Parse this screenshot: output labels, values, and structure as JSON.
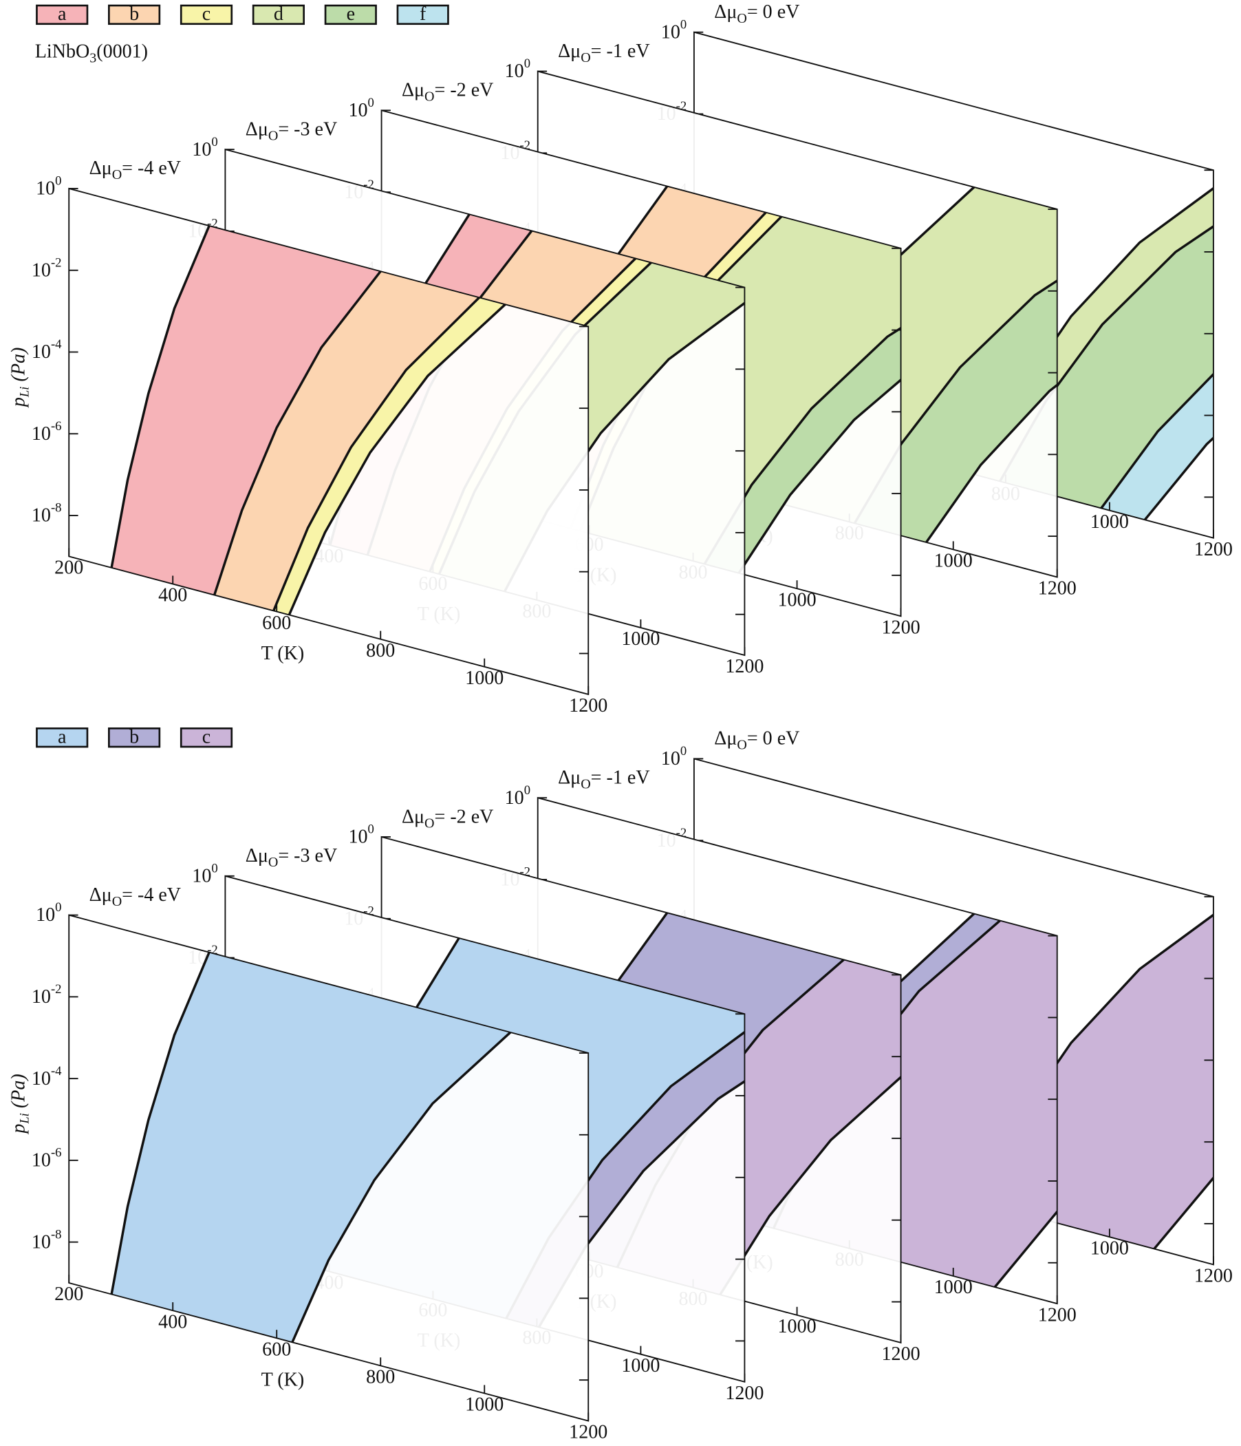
{
  "chart_data": [
    {
      "type": "phase-diagram-3d",
      "title": {
        "main": "LiNbO",
        "sub": "3",
        "rest": "(0001)"
      },
      "legend": [
        {
          "name": "a",
          "color": "#f6b3b8"
        },
        {
          "name": "b",
          "color": "#fcd5b1"
        },
        {
          "name": "c",
          "color": "#f8f4a8"
        },
        {
          "name": "d",
          "color": "#d9e8b0"
        },
        {
          "name": "e",
          "color": "#bcdca9"
        },
        {
          "name": "f",
          "color": "#bde3ee"
        }
      ],
      "xlabel": "T (K)",
      "ylabel": {
        "main": "p",
        "sub": "Li",
        "rest": " (Pa)"
      },
      "xlim": [
        200,
        1200
      ],
      "xticks": [
        200,
        400,
        600,
        800,
        1000,
        1200
      ],
      "ylim": [
        1e-09,
        1
      ],
      "log_y": true,
      "yticks": [
        {
          "value": 1,
          "base": "10",
          "exp": "0"
        },
        {
          "value": 0.01,
          "base": "10",
          "exp": "-2"
        },
        {
          "value": 0.0001,
          "base": "10",
          "exp": "-4"
        },
        {
          "value": 1e-06,
          "base": "10",
          "exp": "-6"
        },
        {
          "value": 1e-08,
          "base": "10",
          "exp": "-8"
        }
      ],
      "p_levels": [
        1e-09,
        1.778e-07,
        3.162e-05,
        0.005623,
        1
      ],
      "planes": [
        {
          "label": {
            "main": "Δμ",
            "sub": "O",
            "rest": "= -4 eV"
          },
          "regions": [
            "a",
            "b",
            "c"
          ],
          "boundaries": [
            {
              "T": [
                282,
                313,
                353,
                403,
                470
              ]
            },
            {
              "T": [
                480,
                533,
                600,
                686,
                800
              ]
            },
            {
              "T": [
                594,
                660,
                743,
                849,
                990
              ]
            },
            {
              "T": [
                624,
                693,
                780,
                891,
                1040
              ]
            }
          ]
        },
        {
          "label": {
            "main": "Δμ",
            "sub": "O",
            "rest": "= -3 eV"
          },
          "regions": [
            "a",
            "b",
            "c",
            "d"
          ],
          "boundaries": [
            {
              "T": [
                402,
                447,
                503,
                574,
                670
              ]
            },
            {
              "T": [
                474,
                527,
                593,
                677,
                790
              ]
            },
            {
              "T": [
                594,
                660,
                743,
                849,
                990
              ]
            },
            {
              "T": [
                612,
                680,
                765,
                874,
                1020
              ]
            },
            {
              "T": [
                738,
                820,
                923,
                1054,
                1230
              ]
            }
          ]
        },
        {
          "label": {
            "main": "Δμ",
            "sub": "O",
            "rest": "= -2 eV"
          },
          "regions": [
            "b",
            "c",
            "d",
            "e"
          ],
          "boundaries": [
            {
              "T": [
                450,
                500,
                563,
                643,
                750
              ]
            },
            {
              "T": [
                564,
                627,
                705,
                806,
                940
              ]
            },
            {
              "T": [
                582,
                647,
                728,
                831,
                970
              ]
            },
            {
              "T": [
                822,
                913,
                1028,
                1174,
                1370
              ]
            },
            {
              "T": [
                888,
                987,
                1110,
                1268,
                1480
              ]
            }
          ]
        },
        {
          "label": {
            "main": "Δμ",
            "sub": "O",
            "rest": "= -1 eV"
          },
          "regions": [
            "d",
            "e"
          ],
          "boundaries": [
            {
              "T": [
                624,
                693,
                780,
                891,
                1040
              ]
            },
            {
              "T": [
                810,
                900,
                1013,
                1157,
                1350
              ]
            },
            {
              "T": [
                948,
                1053,
                1185,
                1354,
                1580
              ]
            }
          ]
        },
        {
          "label": {
            "main": "Δμ",
            "sub": "O",
            "rest": "= 0 eV"
          },
          "regions": [
            "d",
            "e",
            "f"
          ],
          "boundaries": [
            {
              "T": [
                741,
                823,
                926,
                1058,
                1235
              ]
            },
            {
              "T": [
                789,
                877,
                986,
                1127,
                1315
              ]
            },
            {
              "T": [
                984,
                1093,
                1230,
                1406,
                1640
              ]
            },
            {
              "T": [
                1068,
                1187,
                1335,
                1526,
                1780
              ]
            }
          ]
        }
      ]
    },
    {
      "type": "phase-diagram-3d",
      "legend": [
        {
          "name": "a",
          "color": "#b5d5f0"
        },
        {
          "name": "b",
          "color": "#b1aed6"
        },
        {
          "name": "c",
          "color": "#cbb4d8"
        }
      ],
      "xlabel": "T (K)",
      "ylabel": {
        "main": "p",
        "sub": "Li",
        "rest": " (Pa)"
      },
      "xlim": [
        200,
        1200
      ],
      "xticks": [
        200,
        400,
        600,
        800,
        1000,
        1200
      ],
      "ylim": [
        1e-09,
        1
      ],
      "log_y": true,
      "yticks": [
        {
          "value": 1,
          "base": "10",
          "exp": "0"
        },
        {
          "value": 0.01,
          "base": "10",
          "exp": "-2"
        },
        {
          "value": 0.0001,
          "base": "10",
          "exp": "-4"
        },
        {
          "value": 1e-06,
          "base": "10",
          "exp": "-6"
        },
        {
          "value": 1e-08,
          "base": "10",
          "exp": "-8"
        }
      ],
      "p_levels": [
        1e-09,
        1.778e-07,
        3.162e-05,
        0.005623,
        1
      ],
      "planes": [
        {
          "label": {
            "main": "Δμ",
            "sub": "O",
            "rest": "= -4 eV"
          },
          "regions": [
            "a"
          ],
          "boundaries": [
            {
              "T": [
                282,
                313,
                353,
                403,
                470
              ]
            },
            {
              "T": [
                630,
                700,
                788,
                900,
                1050
              ]
            }
          ]
        },
        {
          "label": {
            "main": "Δμ",
            "sub": "O",
            "rest": "= -3 eV"
          },
          "regions": [
            "a",
            "b"
          ],
          "boundaries": [
            {
              "T": [
                390,
                433,
                488,
                557,
                650
              ]
            },
            {
              "T": [
                741,
                823,
                926,
                1058,
                1235
              ]
            },
            {
              "T": [
                804,
                893,
                1005,
                1149,
                1340
              ]
            }
          ]
        },
        {
          "label": {
            "main": "Δμ",
            "sub": "O",
            "rest": "= -2 eV"
          },
          "regions": [
            "b",
            "c"
          ],
          "boundaries": [
            {
              "T": [
                450,
                500,
                563,
                643,
                750
              ]
            },
            {
              "T": [
                654,
                727,
                818,
                934,
                1090
              ]
            },
            {
              "T": [
                852,
                947,
                1065,
                1217,
                1420
              ]
            }
          ]
        },
        {
          "label": {
            "main": "Δμ",
            "sub": "O",
            "rest": "= -1 eV"
          },
          "regions": [
            "b",
            "c"
          ],
          "boundaries": [
            {
              "T": [
                624,
                693,
                780,
                891,
                1040
              ]
            },
            {
              "T": [
                654,
                727,
                818,
                934,
                1090
              ]
            },
            {
              "T": [
                1080,
                1200,
                1350,
                1543,
                1800
              ]
            }
          ]
        },
        {
          "label": {
            "main": "Δμ",
            "sub": "O",
            "rest": "= 0 eV"
          },
          "regions": [
            "c"
          ],
          "boundaries": [
            {
              "T": [
                741,
                823,
                926,
                1058,
                1235
              ]
            },
            {
              "T": [
                1086,
                1207,
                1358,
                1551,
                1810
              ]
            }
          ]
        }
      ]
    }
  ]
}
